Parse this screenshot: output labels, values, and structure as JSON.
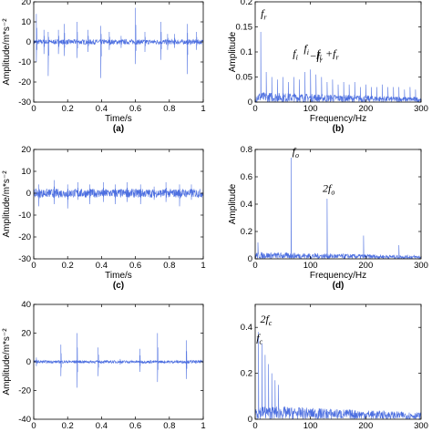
{
  "figure": {
    "panels": [
      "a",
      "b",
      "c",
      "d",
      "e",
      "f"
    ]
  },
  "chart_data": [
    {
      "id": "a",
      "type": "line",
      "label": "(a)",
      "xlabel": "Time/s",
      "ylabel": "Amplitude/m*s⁻²",
      "xlim": [
        0,
        1
      ],
      "ylim": [
        -30,
        20
      ],
      "xticks": [
        0,
        0.2,
        0.4,
        0.6,
        0.8,
        1
      ],
      "yticks": [
        -30,
        -20,
        -10,
        0,
        10,
        20
      ],
      "color": "#4d6fe0",
      "impulses": [
        [
          0.015,
          14,
          -10
        ],
        [
          0.06,
          6,
          -6
        ],
        [
          0.085,
          5,
          -17
        ],
        [
          0.145,
          6,
          -6
        ],
        [
          0.18,
          9,
          -7
        ],
        [
          0.255,
          10,
          -8
        ],
        [
          0.32,
          6,
          -5
        ],
        [
          0.395,
          8,
          -18
        ],
        [
          0.445,
          5,
          -4
        ],
        [
          0.515,
          3,
          -3
        ],
        [
          0.6,
          17,
          -11
        ],
        [
          0.655,
          5,
          -5
        ],
        [
          0.75,
          10,
          -9
        ],
        [
          0.79,
          4,
          -4
        ],
        [
          0.83,
          4,
          -3
        ],
        [
          0.905,
          9,
          -16
        ],
        [
          0.96,
          5,
          -4
        ]
      ],
      "noise": 2.5
    },
    {
      "id": "b",
      "type": "spectrum",
      "label": "(b)",
      "xlabel": "Frequency/Hz",
      "ylabel": "Amplitude",
      "xlim": [
        0,
        300
      ],
      "ylim": [
        0,
        0.2
      ],
      "xticks": [
        0,
        100,
        200,
        300
      ],
      "yticks": [
        0,
        0.05,
        0.1,
        0.15,
        0.2
      ],
      "color": "#4d6fe0",
      "peaks": [
        [
          10,
          0.14
        ],
        [
          20,
          0.06
        ],
        [
          30,
          0.05
        ],
        [
          40,
          0.045
        ],
        [
          50,
          0.05
        ],
        [
          60,
          0.04
        ],
        [
          70,
          0.05
        ],
        [
          80,
          0.045
        ],
        [
          90,
          0.06
        ],
        [
          100,
          0.065
        ],
        [
          110,
          0.055
        ],
        [
          120,
          0.05
        ],
        [
          130,
          0.04
        ],
        [
          140,
          0.045
        ],
        [
          150,
          0.035
        ],
        [
          160,
          0.04
        ],
        [
          170,
          0.035
        ],
        [
          180,
          0.04
        ],
        [
          190,
          0.03
        ],
        [
          200,
          0.035
        ],
        [
          210,
          0.03
        ],
        [
          220,
          0.03
        ],
        [
          230,
          0.035
        ],
        [
          240,
          0.03
        ],
        [
          250,
          0.03
        ],
        [
          260,
          0.03
        ],
        [
          270,
          0.025
        ],
        [
          280,
          0.03
        ],
        [
          290,
          0.025
        ]
      ],
      "noise": 0.02,
      "annotations": [
        {
          "text": "f",
          "sub": "r",
          "x": 10,
          "y": 0.17
        },
        {
          "text": "f",
          "sub": "i",
          "x": 68,
          "y": 0.09
        },
        {
          "text": "f",
          "sub": "i",
          "x": 88,
          "y": 0.1
        },
        {
          "text": "−f",
          "sub": "r",
          "x": 98,
          "y": 0.085
        },
        {
          "text": "f",
          "sub": "i",
          "x": 111,
          "y": 0.09
        },
        {
          "text": "+f",
          "sub": "r",
          "x": 127,
          "y": 0.09
        }
      ]
    },
    {
      "id": "c",
      "type": "line",
      "label": "(c)",
      "xlabel": "Time/s",
      "ylabel": "Amplitude/m*s⁻²",
      "xlim": [
        0,
        1
      ],
      "ylim": [
        -30,
        20
      ],
      "xticks": [
        0,
        0.2,
        0.4,
        0.6,
        0.8,
        1
      ],
      "yticks": [
        -30,
        -20,
        -10,
        0,
        10,
        20
      ],
      "color": "#4d6fe0",
      "impulses": [
        [
          0.03,
          4,
          -6
        ],
        [
          0.12,
          6,
          -5
        ],
        [
          0.2,
          4,
          -7
        ],
        [
          0.26,
          5,
          -3
        ],
        [
          0.33,
          4,
          -5
        ],
        [
          0.41,
          5,
          -4
        ],
        [
          0.48,
          4,
          -5
        ],
        [
          0.55,
          5,
          -4
        ],
        [
          0.63,
          4,
          -5
        ],
        [
          0.71,
          3,
          -3
        ],
        [
          0.78,
          5,
          -4
        ],
        [
          0.86,
          4,
          -6
        ],
        [
          0.93,
          4,
          -3
        ]
      ],
      "noise": 4
    },
    {
      "id": "d",
      "type": "spectrum",
      "label": "(d)",
      "xlabel": "Frequency/Hz",
      "ylabel": "Amplitude",
      "xlim": [
        0,
        300
      ],
      "ylim": [
        0,
        0.8
      ],
      "xticks": [
        0,
        100,
        200,
        300
      ],
      "yticks": [
        0,
        0.2,
        0.4,
        0.6,
        0.8
      ],
      "color": "#4d6fe0",
      "peaks": [
        [
          5,
          0.12
        ],
        [
          65,
          0.74
        ],
        [
          130,
          0.44
        ],
        [
          196,
          0.17
        ],
        [
          260,
          0.1
        ]
      ],
      "noise": 0.05,
      "annotations": [
        {
          "text": "f",
          "sub": "o",
          "x": 67,
          "y": 0.76
        },
        {
          "text": "2f",
          "sub": "o",
          "x": 122,
          "y": 0.49
        }
      ]
    },
    {
      "id": "e",
      "type": "line",
      "label": "",
      "xlabel": "",
      "ylabel": "Amplitude/m*s⁻²",
      "xlim": [
        0,
        1
      ],
      "ylim": [
        -40,
        40
      ],
      "xticks": [
        0,
        0.2,
        0.4,
        0.6,
        0.8,
        1
      ],
      "yticks": [
        -40,
        -20,
        0,
        20,
        40
      ],
      "color": "#4d6fe0",
      "impulses": [
        [
          0.015,
          3,
          -3
        ],
        [
          0.16,
          12,
          -10
        ],
        [
          0.255,
          20,
          -18
        ],
        [
          0.38,
          10,
          -10
        ],
        [
          0.51,
          2,
          -2
        ],
        [
          0.625,
          9,
          -7
        ],
        [
          0.73,
          20,
          -14
        ],
        [
          0.9,
          15,
          -12
        ]
      ],
      "noise": 2
    },
    {
      "id": "f",
      "type": "spectrum",
      "label": "",
      "xlabel": "",
      "ylabel": "",
      "xlim": [
        0,
        300
      ],
      "ylim": [
        0,
        0.5
      ],
      "xticks": [
        0,
        100,
        200,
        300
      ],
      "yticks": [
        0,
        0.2,
        0.4
      ],
      "color": "#4d6fe0",
      "peaks": [
        [
          6,
          0.38
        ],
        [
          12,
          0.33
        ],
        [
          18,
          0.28
        ],
        [
          24,
          0.24
        ],
        [
          30,
          0.2
        ],
        [
          36,
          0.17
        ],
        [
          42,
          0.15
        ]
      ],
      "noise": 0.06,
      "annotations": [
        {
          "text": "2f",
          "sub": "c",
          "x": 9,
          "y": 0.42
        },
        {
          "text": "f",
          "sub": "c",
          "x": 2,
          "y": 0.34
        }
      ]
    }
  ]
}
